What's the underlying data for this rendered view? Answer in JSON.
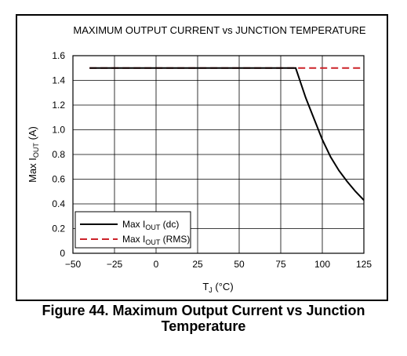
{
  "chart_data": {
    "type": "line",
    "title": "MAXIMUM OUTPUT CURRENT vs JUNCTION TEMPERATURE",
    "xlabel": {
      "main": "T",
      "sub": "J",
      "rest": " (°C)"
    },
    "ylabel": {
      "main": "Max I",
      "sub": "OUT",
      "rest": " (A)"
    },
    "xlim": [
      -50,
      125
    ],
    "ylim": [
      0,
      1.6
    ],
    "xticks": [
      -50,
      -25,
      0,
      25,
      50,
      75,
      100,
      125
    ],
    "xtick_labels": [
      "−50",
      "−25",
      "0",
      "25",
      "50",
      "75",
      "100",
      "125"
    ],
    "yticks": [
      0,
      0.2,
      0.4,
      0.6,
      0.8,
      1.0,
      1.2,
      1.4,
      1.6
    ],
    "ytick_labels": [
      "0",
      "0.2",
      "0.4",
      "0.6",
      "0.8",
      "1.0",
      "1.2",
      "1.4",
      "1.6"
    ],
    "grid": true,
    "legend_position": "bottom-left",
    "series": [
      {
        "name": {
          "main": "Max I",
          "sub": "OUT",
          "rest": " (dc)"
        },
        "style": "solid",
        "color": "#000000",
        "x": [
          -40,
          84,
          87,
          90,
          95,
          100,
          105,
          110,
          115,
          120,
          125
        ],
        "y": [
          1.5,
          1.5,
          1.38,
          1.26,
          1.09,
          0.92,
          0.78,
          0.67,
          0.58,
          0.5,
          0.43
        ]
      },
      {
        "name": {
          "main": "Max I",
          "sub": "OUT",
          "rest": " (RMS)"
        },
        "style": "dashed",
        "color": "#cc2229",
        "x": [
          -40,
          125
        ],
        "y": [
          1.5,
          1.5
        ]
      }
    ]
  },
  "caption": {
    "line1": "Figure 44.  Maximum Output Current vs Junction",
    "line2": "Temperature"
  }
}
